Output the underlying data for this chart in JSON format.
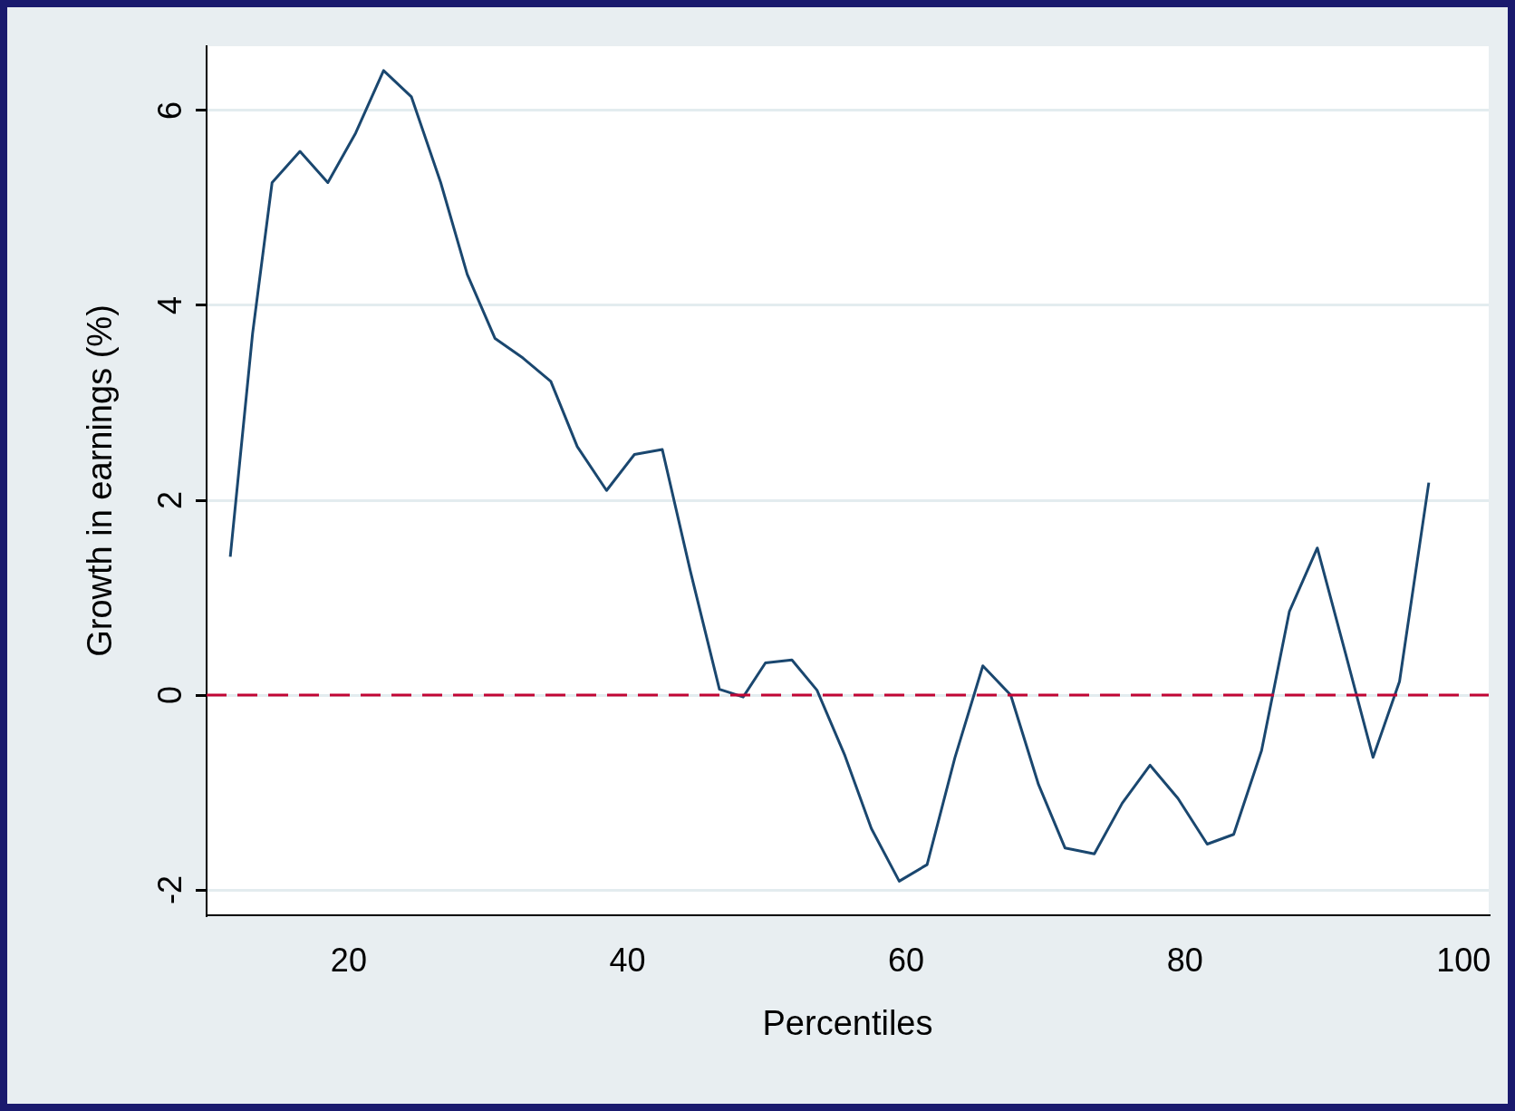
{
  "chart_data": {
    "type": "line",
    "xlabel": "Percentiles",
    "ylabel": "Growth in earnings (%)",
    "xlim": [
      9.8,
      101.8
    ],
    "xticks": [
      20,
      40,
      60,
      80,
      100
    ],
    "ylim": [
      -2.26,
      6.66
    ],
    "yticks": [
      -2,
      0,
      2,
      4,
      6
    ],
    "grid": "y",
    "legend": false,
    "marker": "none",
    "line_style": "solid",
    "ref_lines": [
      {
        "axis": "y",
        "value": 0,
        "color": "#c10534",
        "line_style": "dashed"
      }
    ],
    "series": [
      {
        "color": "#1a476f",
        "x": [
          11.5,
          13.1,
          14.5,
          16.5,
          18.5,
          20.5,
          22.5,
          24.5,
          26.6,
          28.5,
          30.5,
          32.5,
          34.5,
          36.4,
          38.5,
          40.5,
          42.5,
          44.5,
          46.6,
          48.3,
          49.9,
          51.8,
          53.6,
          55.6,
          57.5,
          59.5,
          61.5,
          63.5,
          65.5,
          67.5,
          69.5,
          71.4,
          73.5,
          75.5,
          77.5,
          79.5,
          81.6,
          83.5,
          85.5,
          87.5,
          89.5,
          91.5,
          93.5,
          95.4,
          97.5
        ],
        "values": [
          1.42,
          3.71,
          5.26,
          5.58,
          5.26,
          5.77,
          6.41,
          6.14,
          5.26,
          4.32,
          3.66,
          3.46,
          3.22,
          2.55,
          2.1,
          2.47,
          2.52,
          1.28,
          0.06,
          -0.02,
          0.33,
          0.36,
          0.05,
          -0.62,
          -1.37,
          -1.91,
          -1.74,
          -0.64,
          0.3,
          0,
          -0.92,
          -1.57,
          -1.63,
          -1.11,
          -0.72,
          -1.06,
          -1.53,
          -1.43,
          -0.57,
          0.86,
          1.51,
          0.44,
          -0.64,
          0.14,
          2.18
        ]
      }
    ]
  }
}
